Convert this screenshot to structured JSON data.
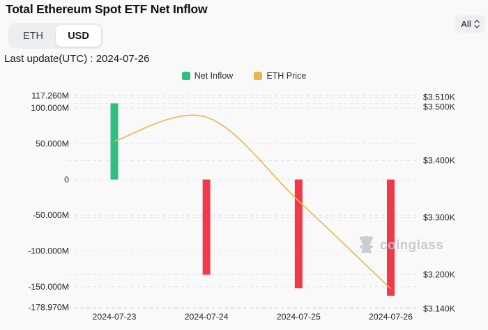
{
  "header": {
    "title": "Total Ethereum Spot ETF Net Inflow",
    "currency_toggle": {
      "options": [
        "ETH",
        "USD"
      ],
      "selected": "USD"
    },
    "range_select": {
      "value": "All"
    },
    "last_update": "Last update(UTC) : 2024-07-26"
  },
  "legend": [
    {
      "label": "Net Inflow",
      "color": "#31bf80"
    },
    {
      "label": "ETH Price",
      "color": "#e9b64a"
    }
  ],
  "watermark": {
    "label": "coinglass"
  },
  "chart_data": {
    "type": "bar",
    "categories": [
      "2024-07-23",
      "2024-07-24",
      "2024-07-25",
      "2024-07-26"
    ],
    "series": [
      {
        "name": "Net Inflow",
        "kind": "bar",
        "axis": "left",
        "unit": "M (USD)",
        "values": [
          106.6,
          -133.3,
          -152.3,
          -162.7
        ],
        "colors": {
          "positive": "#31bf80",
          "negative": "#f2394a"
        }
      },
      {
        "name": "ETH Price",
        "kind": "line",
        "axis": "right",
        "unit": "USD",
        "values": [
          3434,
          3476,
          3329,
          3175
        ],
        "color": "#e9b64a"
      }
    ],
    "left_axis": {
      "range": [
        -178.97,
        117.26
      ],
      "ticks": [
        {
          "value": 117.26,
          "label": "117.260M"
        },
        {
          "value": 100,
          "label": "100.000M"
        },
        {
          "value": 50,
          "label": "50.000M"
        },
        {
          "value": 0,
          "label": "0"
        },
        {
          "value": -50,
          "label": "-50.000M"
        },
        {
          "value": -100,
          "label": "-100.000M"
        },
        {
          "value": -150,
          "label": "-150.000M"
        },
        {
          "value": -178.97,
          "label": "-178.970M"
        }
      ]
    },
    "right_axis": {
      "range": [
        3140,
        3510
      ],
      "ticks": [
        {
          "value": 3510,
          "label": "$3.510K",
          "label_dy": -1
        },
        {
          "value": 3500,
          "label": "$3.500K",
          "label_dy": 5
        },
        {
          "value": 3400,
          "label": "$3.400K"
        },
        {
          "value": 3300,
          "label": "$3.300K"
        },
        {
          "value": 3200,
          "label": "$3.200K"
        },
        {
          "value": 3140,
          "label": "$3.140K"
        }
      ]
    },
    "grid": "dashed horizontal",
    "legend_position": "top-center"
  }
}
